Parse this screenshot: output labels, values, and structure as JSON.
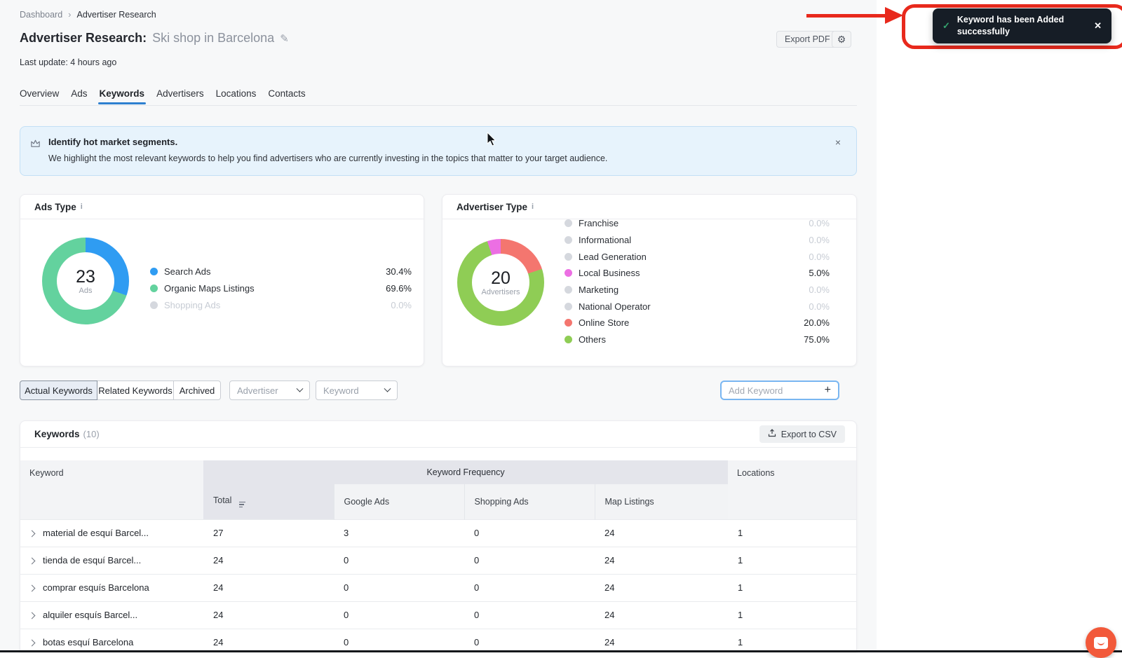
{
  "icons": {
    "crumb_sep": "›",
    "pencil": "✎",
    "gear": "⚙",
    "info": "i",
    "banner_close": "×",
    "toast_close": "✕",
    "toast_check": "✓",
    "plus": "+"
  },
  "breadcrumb": {
    "home": "Dashboard",
    "current": "Advertiser Research"
  },
  "header": {
    "title_prefix": "Advertiser Research:",
    "title_value": "Ski shop in Barcelona",
    "last_update": "Last update: 4 hours ago",
    "export_pdf_label": "Export PDF"
  },
  "toast": {
    "line1": "Keyword has been Added",
    "line2": "successfully",
    "accent": "#e8291c",
    "check_color": "#35a46f"
  },
  "tabs": {
    "items": [
      "Overview",
      "Ads",
      "Keywords",
      "Advertisers",
      "Locations",
      "Contacts"
    ],
    "active": "Keywords"
  },
  "banner": {
    "title": "Identify hot market segments.",
    "description": "We highlight the most relevant keywords to help you find advertisers who are currently investing in the topics that matter to your target audience."
  },
  "ads_type": {
    "title": "Ads Type",
    "center_value": "23",
    "center_label": "Ads",
    "donut": {
      "start_deg": 0,
      "segments": [
        {
          "color": "#2f9cf2",
          "pct": 30.4
        },
        {
          "color": "#63d29e",
          "pct": 69.6
        }
      ]
    },
    "legend": [
      {
        "label": "Search Ads",
        "value": "30.4%",
        "color": "#2f9cf2",
        "dim_label": false,
        "dim_value": false
      },
      {
        "label": "Organic Maps Listings",
        "value": "69.6%",
        "color": "#63d29e",
        "dim_label": false,
        "dim_value": false
      },
      {
        "label": "Shopping Ads",
        "value": "0.0%",
        "color": "#d5d8de",
        "dim_label": true,
        "dim_value": true
      }
    ]
  },
  "advertiser_type": {
    "title": "Advertiser Type",
    "center_value": "20",
    "center_label": "Advertisers",
    "donut": {
      "start_deg": -18,
      "segments": [
        {
          "color": "#ec6fe3",
          "pct": 5
        },
        {
          "color": "#f4766f",
          "pct": 20
        },
        {
          "color": "#8fcd55",
          "pct": 75
        }
      ]
    },
    "legend": [
      {
        "label": "Franchise",
        "value": "0.0%",
        "color": "#d5d8de",
        "dim_label": false,
        "dim_value": true
      },
      {
        "label": "Informational",
        "value": "0.0%",
        "color": "#d5d8de",
        "dim_label": false,
        "dim_value": true
      },
      {
        "label": "Lead Generation",
        "value": "0.0%",
        "color": "#d5d8de",
        "dim_label": false,
        "dim_value": true
      },
      {
        "label": "Local Business",
        "value": "5.0%",
        "color": "#ec6fe3",
        "dim_label": false,
        "dim_value": false
      },
      {
        "label": "Marketing",
        "value": "0.0%",
        "color": "#d5d8de",
        "dim_label": false,
        "dim_value": true
      },
      {
        "label": "National Operator",
        "value": "0.0%",
        "color": "#d5d8de",
        "dim_label": false,
        "dim_value": true
      },
      {
        "label": "Online Store",
        "value": "20.0%",
        "color": "#f4766f",
        "dim_label": false,
        "dim_value": false
      },
      {
        "label": "Others",
        "value": "75.0%",
        "color": "#8fcd55",
        "dim_label": false,
        "dim_value": false
      }
    ]
  },
  "filters": {
    "segments": [
      {
        "label": "Actual Keywords",
        "active": true
      },
      {
        "label": "Related Keywords",
        "active": false
      },
      {
        "label": "Archived",
        "active": false
      }
    ],
    "advertiser_placeholder": "Advertiser",
    "keyword_placeholder": "Keyword",
    "add_keyword_placeholder": "Add Keyword"
  },
  "keywords_table": {
    "title": "Keywords",
    "count": "(10)",
    "export_csv_label": "Export to CSV",
    "group_header": "Keyword Frequency",
    "columns": {
      "keyword": "Keyword",
      "total": "Total",
      "google": "Google Ads",
      "shopping": "Shopping Ads",
      "map": "Map Listings",
      "locations": "Locations"
    },
    "rows": [
      {
        "keyword": "material de esquí Barcel...",
        "total": "27",
        "google": "3",
        "shopping": "0",
        "map": "24",
        "locations": "1"
      },
      {
        "keyword": "tienda de esquí Barcel...",
        "total": "24",
        "google": "0",
        "shopping": "0",
        "map": "24",
        "locations": "1"
      },
      {
        "keyword": "comprar esquís Barcelona",
        "total": "24",
        "google": "0",
        "shopping": "0",
        "map": "24",
        "locations": "1"
      },
      {
        "keyword": "alquiler esquís Barcel...",
        "total": "24",
        "google": "0",
        "shopping": "0",
        "map": "24",
        "locations": "1"
      },
      {
        "keyword": "botas esquí Barcelona",
        "total": "24",
        "google": "0",
        "shopping": "0",
        "map": "24",
        "locations": "1"
      }
    ]
  },
  "chart_data": [
    {
      "type": "pie",
      "title": "Ads Type",
      "categories": [
        "Search Ads",
        "Organic Maps Listings",
        "Shopping Ads"
      ],
      "values": [
        30.4,
        69.6,
        0.0
      ],
      "center_label": "23 Ads",
      "legend_position": "right"
    },
    {
      "type": "pie",
      "title": "Advertiser Type",
      "categories": [
        "Franchise",
        "Informational",
        "Lead Generation",
        "Local Business",
        "Marketing",
        "National Operator",
        "Online Store",
        "Others"
      ],
      "values": [
        0.0,
        0.0,
        0.0,
        5.0,
        0.0,
        0.0,
        20.0,
        75.0
      ],
      "center_label": "20 Advertisers",
      "legend_position": "right"
    }
  ]
}
